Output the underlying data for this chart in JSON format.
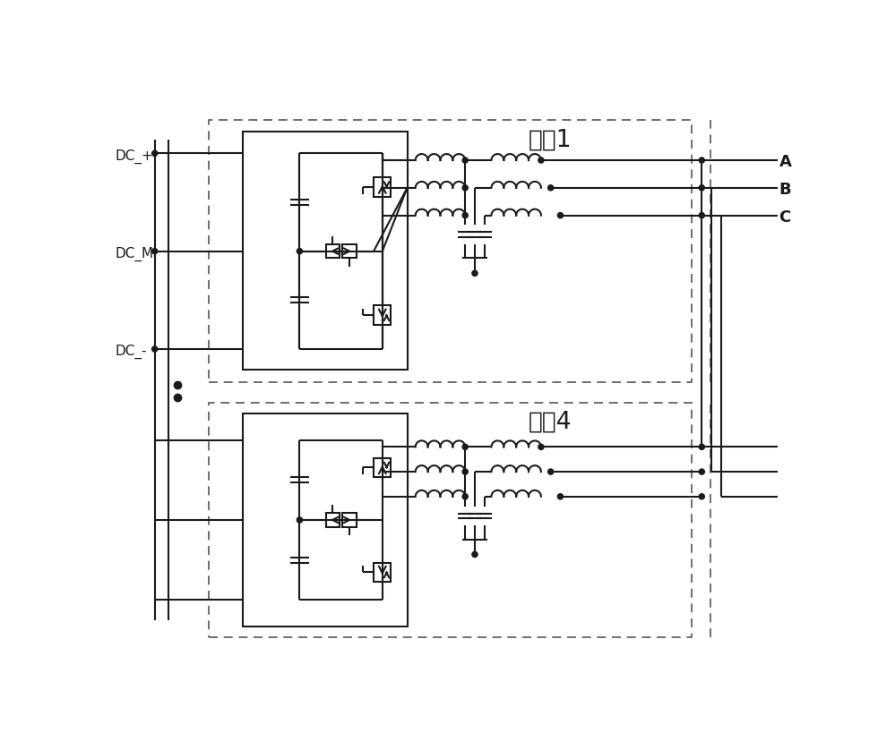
{
  "bg_color": "#ffffff",
  "line_color": "#1a1a1a",
  "module1_title": "模块1",
  "module4_title": "模块4",
  "ac_labels": [
    "A",
    "B",
    "C"
  ],
  "dc_labels": [
    "DC_+",
    "DC_M",
    "DC_-"
  ]
}
